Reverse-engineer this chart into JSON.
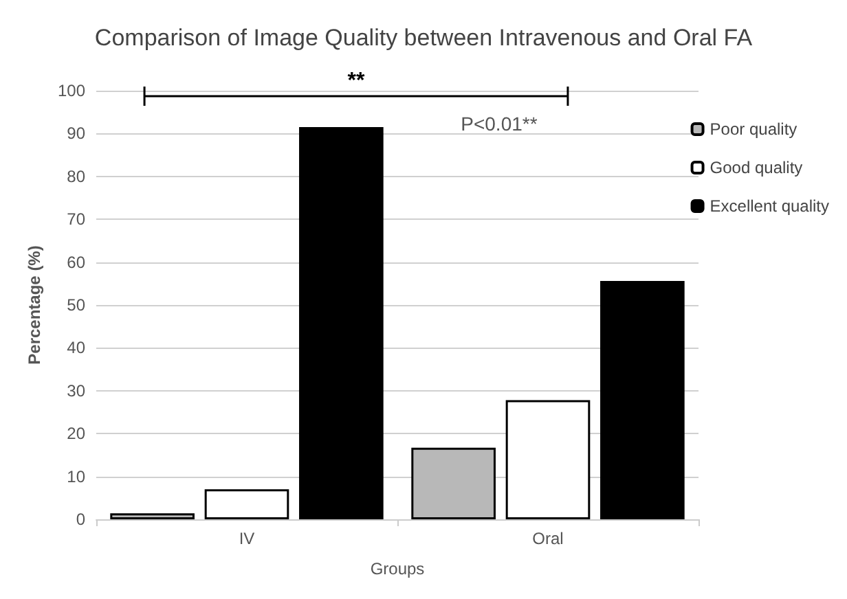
{
  "chart_data": {
    "type": "bar",
    "title": "Comparison of Image Quality between Intravenous and Oral FA",
    "xlabel": "Groups",
    "ylabel": "Percentage (%)",
    "categories": [
      "IV",
      "Oral"
    ],
    "series": [
      {
        "name": "Poor quality",
        "color": "#b8b8b8",
        "values": [
          1.4,
          16.7
        ]
      },
      {
        "name": "Good quality",
        "color": "#ffffff",
        "values": [
          7,
          27.8
        ]
      },
      {
        "name": "Excellent quality",
        "color": "#000000",
        "values": [
          91.5,
          55.6
        ]
      }
    ],
    "ylim": [
      0,
      100
    ],
    "yticks": [
      0,
      10,
      20,
      30,
      40,
      50,
      60,
      70,
      80,
      90,
      100
    ],
    "grid": "y",
    "legend": "right",
    "annotations": [
      "**",
      "P<0.01**"
    ]
  }
}
